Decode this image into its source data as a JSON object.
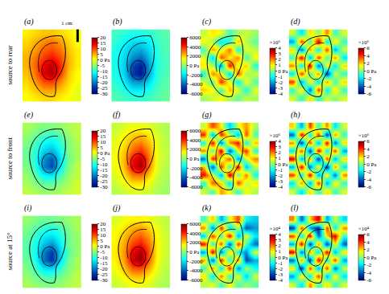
{
  "row_labels": [
    "source to rear",
    "source to front",
    "source at 15°"
  ],
  "scale_bar": "1 cm",
  "chart_data": [
    {
      "type": "heatmap",
      "label": "(a)",
      "color": "jet",
      "zlim": [
        -30,
        20
      ],
      "zticks": [
        -30,
        -25,
        -20,
        -15,
        -10,
        -5,
        {
          "value": 0,
          "label": "0 Pa"
        },
        5,
        10,
        15,
        20
      ],
      "cells": [
        [
          2,
          3,
          4,
          4,
          3,
          2,
          1
        ],
        [
          3,
          5,
          7,
          8,
          6,
          3,
          1
        ],
        [
          4,
          6,
          9,
          10,
          8,
          4,
          2
        ],
        [
          5,
          8,
          11,
          13,
          10,
          5,
          2
        ],
        [
          5,
          9,
          14,
          17,
          12,
          5,
          2
        ],
        [
          4,
          8,
          15,
          18,
          11,
          4,
          1
        ],
        [
          3,
          6,
          10,
          11,
          7,
          3,
          1
        ],
        [
          2,
          4,
          6,
          6,
          4,
          2,
          0
        ],
        [
          1,
          2,
          3,
          3,
          2,
          1,
          0
        ]
      ]
    },
    {
      "type": "heatmap",
      "label": "(b)",
      "color": "jet",
      "zlim": [
        -6000,
        6000
      ],
      "zticks": [
        -6000,
        -4000,
        -2000,
        {
          "value": 0,
          "label": "0 Pa"
        },
        2000,
        4000,
        6000
      ],
      "cells": [
        [
          -800,
          -1000,
          -1200,
          -1200,
          -1000,
          -700,
          -500
        ],
        [
          -1000,
          -1500,
          -2000,
          -2000,
          -1600,
          -900,
          -600
        ],
        [
          -1200,
          -1800,
          -2500,
          -2800,
          -2000,
          -1000,
          -600
        ],
        [
          -1300,
          -2000,
          -3200,
          -3800,
          -2500,
          -1100,
          -700
        ],
        [
          -1300,
          -2200,
          -4200,
          -5200,
          -3000,
          -1100,
          -700
        ],
        [
          -1200,
          -2100,
          -4500,
          -5500,
          -2800,
          -1000,
          -600
        ],
        [
          -1000,
          -1700,
          -3000,
          -3200,
          -2000,
          -900,
          -500
        ],
        [
          -800,
          -1200,
          -1800,
          -1800,
          -1200,
          -700,
          -400
        ],
        [
          -600,
          -800,
          -1000,
          -1000,
          -800,
          -500,
          -300
        ]
      ]
    },
    {
      "type": "heatmap",
      "label": "(c)",
      "color": "jet",
      "zlim": [
        -4,
        4
      ],
      "colorbar_title": "×10⁶",
      "zticks": [
        -4,
        -3,
        -2,
        -1,
        {
          "value": 0,
          "label": "0 Pa"
        },
        1,
        2,
        3,
        4
      ],
      "cells": [
        [
          0.5,
          1.2,
          0.8,
          -0.5,
          0.3,
          0.6,
          0.2
        ],
        [
          1.0,
          0.3,
          -1.2,
          -0.8,
          1.5,
          0.4,
          -0.3
        ],
        [
          -0.5,
          1.8,
          0.5,
          2.2,
          -1.0,
          0.8,
          0.5
        ],
        [
          0.8,
          -1.5,
          2.5,
          1.0,
          2.0,
          -0.6,
          1.0
        ],
        [
          1.2,
          0.4,
          -2.0,
          3.0,
          0.5,
          1.5,
          -0.8
        ],
        [
          -0.8,
          2.0,
          1.0,
          -1.5,
          2.5,
          0.2,
          0.6
        ],
        [
          0.6,
          -0.4,
          2.8,
          0.8,
          -1.2,
          1.0,
          -0.4
        ],
        [
          1.4,
          0.9,
          -0.6,
          1.6,
          0.7,
          -0.9,
          0.8
        ],
        [
          0.2,
          0.6,
          1.0,
          0.3,
          -0.2,
          0.5,
          0.3
        ]
      ]
    },
    {
      "type": "heatmap",
      "label": "(d)",
      "color": "jet",
      "zlim": [
        -6,
        6
      ],
      "colorbar_title": "×10⁶",
      "zticks": [
        -6,
        -4,
        -2,
        {
          "value": 0,
          "label": "0 Pa"
        },
        2,
        4,
        6
      ],
      "cells": [
        [
          1,
          -2,
          2,
          0,
          3,
          -1,
          1
        ],
        [
          -3,
          4,
          -1,
          5,
          -2,
          2,
          -1
        ],
        [
          2,
          -4,
          3,
          -2,
          4,
          -3,
          1
        ],
        [
          -1,
          5,
          -3,
          4,
          -1,
          3,
          -2
        ],
        [
          3,
          -2,
          5,
          -4,
          2,
          -2,
          2
        ],
        [
          -2,
          4,
          -1,
          3,
          -5,
          1,
          -1
        ],
        [
          4,
          -3,
          2,
          -2,
          3,
          -1,
          2
        ],
        [
          -1,
          2,
          -4,
          4,
          -2,
          2,
          -1
        ],
        [
          1,
          -1,
          2,
          -1,
          1,
          0,
          1
        ]
      ]
    },
    {
      "type": "heatmap",
      "label": "(e)",
      "color": "jet",
      "zlim": [
        -30,
        20
      ],
      "zticks": [
        -30,
        -25,
        -20,
        -15,
        -10,
        -5,
        {
          "value": 0,
          "label": "0 Pa"
        },
        5,
        10,
        15,
        20
      ],
      "cells": [
        [
          -3,
          -4,
          -5,
          -5,
          -4,
          -3,
          -2
        ],
        [
          -4,
          -6,
          -8,
          -9,
          -7,
          -4,
          -2
        ],
        [
          -5,
          -8,
          -11,
          -12,
          -9,
          -5,
          -3
        ],
        [
          -6,
          -9,
          -14,
          -16,
          -11,
          -5,
          -3
        ],
        [
          -6,
          -10,
          -18,
          -22,
          -13,
          -6,
          -3
        ],
        [
          -5,
          -9,
          -19,
          -23,
          -12,
          -5,
          -2
        ],
        [
          -4,
          -7,
          -12,
          -13,
          -8,
          -4,
          -2
        ],
        [
          -3,
          -5,
          -7,
          -7,
          -5,
          -3,
          -1
        ],
        [
          -2,
          -3,
          -4,
          -4,
          -3,
          -2,
          -1
        ]
      ]
    },
    {
      "type": "heatmap",
      "label": "(f)",
      "color": "jet",
      "zlim": [
        -6000,
        6000
      ],
      "zticks": [
        -6000,
        -4000,
        -2000,
        {
          "value": 0,
          "label": "0 Pa"
        },
        2000,
        4000,
        6000
      ],
      "cells": [
        [
          800,
          1000,
          1300,
          1300,
          1100,
          800,
          500
        ],
        [
          1000,
          1500,
          2000,
          2200,
          1700,
          1000,
          600
        ],
        [
          1200,
          1800,
          2600,
          3000,
          2200,
          1100,
          700
        ],
        [
          1300,
          2100,
          3300,
          4000,
          2700,
          1200,
          700
        ],
        [
          1400,
          2300,
          4300,
          5300,
          3100,
          1200,
          700
        ],
        [
          1300,
          2200,
          4600,
          5600,
          2900,
          1100,
          600
        ],
        [
          1100,
          1800,
          3100,
          3300,
          2100,
          900,
          500
        ],
        [
          900,
          1300,
          1900,
          1900,
          1300,
          700,
          400
        ],
        [
          600,
          900,
          1100,
          1100,
          900,
          500,
          300
        ]
      ]
    },
    {
      "type": "heatmap",
      "label": "(g)",
      "color": "jet",
      "zlim": [
        -4,
        4
      ],
      "colorbar_title": "×10⁶",
      "zticks": [
        -4,
        -3,
        -2,
        -1,
        {
          "value": 0,
          "label": "0 Pa"
        },
        1,
        2,
        3,
        4
      ],
      "cells": [
        [
          0.5,
          2.5,
          1.0,
          -1.5,
          0.8,
          1.8,
          0.3
        ],
        [
          2.8,
          -2.0,
          3.0,
          0.5,
          -1.8,
          2.5,
          -0.5
        ],
        [
          -1.0,
          3.2,
          -2.5,
          2.0,
          3.0,
          -1.2,
          1.5
        ],
        [
          2.0,
          -0.5,
          3.5,
          -3.0,
          1.0,
          2.8,
          -0.8
        ],
        [
          -2.5,
          3.0,
          0.5,
          2.5,
          -2.2,
          0.6,
          2.0
        ],
        [
          1.5,
          -3.0,
          2.8,
          -0.8,
          3.2,
          -1.8,
          0.5
        ],
        [
          3.0,
          0.8,
          -2.0,
          3.5,
          -0.5,
          2.2,
          -1.0
        ],
        [
          -0.8,
          2.4,
          1.2,
          -1.5,
          2.6,
          0.4,
          1.2
        ],
        [
          0.6,
          -0.4,
          1.8,
          0.8,
          -0.6,
          1.0,
          0.3
        ]
      ]
    },
    {
      "type": "heatmap",
      "label": "(h)",
      "color": "jet",
      "zlim": [
        -6,
        6
      ],
      "colorbar_title": "×10⁶",
      "zticks": [
        -6,
        -4,
        -2,
        {
          "value": 0,
          "label": "0 Pa"
        },
        2,
        4,
        6
      ],
      "cells": [
        [
          2,
          -3,
          4,
          -1,
          3,
          -2,
          1
        ],
        [
          -4,
          5,
          -2,
          4,
          -5,
          3,
          -1
        ],
        [
          3,
          -5,
          4,
          -3,
          5,
          -4,
          2
        ],
        [
          -2,
          4,
          -5,
          5,
          -2,
          4,
          -3
        ],
        [
          5,
          -3,
          3,
          -5,
          4,
          -3,
          2
        ],
        [
          -3,
          5,
          -4,
          2,
          -5,
          3,
          -2
        ],
        [
          4,
          -2,
          5,
          -3,
          2,
          -4,
          3
        ],
        [
          -2,
          3,
          -3,
          4,
          -3,
          2,
          -1
        ],
        [
          1,
          -2,
          2,
          -1,
          2,
          -1,
          1
        ]
      ]
    },
    {
      "type": "heatmap",
      "label": "(i)",
      "color": "jet",
      "zlim": [
        -30,
        20
      ],
      "zticks": [
        -30,
        -25,
        -20,
        -15,
        -10,
        -5,
        {
          "value": 0,
          "label": "0 Pa"
        },
        5,
        10,
        15,
        20
      ],
      "cells": [
        [
          -4,
          -5,
          -6,
          -6,
          -5,
          -4,
          -3
        ],
        [
          -5,
          -7,
          -9,
          -10,
          -8,
          -5,
          -3
        ],
        [
          -6,
          -9,
          -12,
          -13,
          -10,
          -6,
          -4
        ],
        [
          -7,
          -10,
          -15,
          -18,
          -12,
          -6,
          -4
        ],
        [
          -7,
          -11,
          -19,
          -24,
          -14,
          -7,
          -4
        ],
        [
          -6,
          -10,
          -20,
          -25,
          -13,
          -6,
          -3
        ],
        [
          -5,
          -8,
          -13,
          -14,
          -9,
          -5,
          -3
        ],
        [
          -4,
          -6,
          -8,
          -8,
          -6,
          -4,
          -2
        ],
        [
          -3,
          -4,
          -5,
          -5,
          -4,
          -3,
          -2
        ]
      ]
    },
    {
      "type": "heatmap",
      "label": "(j)",
      "color": "jet",
      "zlim": [
        -6000,
        6000
      ],
      "zticks": [
        -6000,
        -4000,
        -2000,
        {
          "value": 0,
          "label": "0 Pa"
        },
        2000,
        4000,
        6000
      ],
      "cells": [
        [
          1000,
          1300,
          1600,
          1600,
          1400,
          1000,
          700
        ],
        [
          1300,
          1800,
          2400,
          2600,
          2000,
          1200,
          800
        ],
        [
          1500,
          2200,
          3000,
          3400,
          2600,
          1400,
          900
        ],
        [
          1600,
          2500,
          3700,
          4300,
          3100,
          1500,
          900
        ],
        [
          1700,
          2700,
          4600,
          5500,
          3500,
          1500,
          900
        ],
        [
          1600,
          2600,
          4900,
          5800,
          3300,
          1400,
          800
        ],
        [
          1400,
          2200,
          3500,
          3700,
          2500,
          1200,
          700
        ],
        [
          1100,
          1600,
          2300,
          2300,
          1600,
          900,
          600
        ],
        [
          800,
          1100,
          1400,
          1400,
          1100,
          700,
          400
        ]
      ]
    },
    {
      "type": "heatmap",
      "label": "(k)",
      "color": "jet",
      "zlim": [
        -4,
        4
      ],
      "colorbar_title": "×10⁴",
      "zticks": [
        -4,
        -3,
        -2,
        -1,
        {
          "value": 0,
          "label": "0 Pa"
        },
        1,
        2,
        3,
        4
      ],
      "cells": [
        [
          -0.5,
          1.5,
          -2.0,
          0.8,
          2.5,
          -1.0,
          -1.5
        ],
        [
          2.0,
          -2.5,
          3.0,
          -1.5,
          0.5,
          -2.8,
          -2.0
        ],
        [
          -1.5,
          2.8,
          -0.8,
          3.2,
          -2.0,
          1.0,
          -1.2
        ],
        [
          3.0,
          -1.0,
          2.5,
          -3.0,
          2.8,
          -0.5,
          -2.5
        ],
        [
          -2.0,
          3.5,
          -2.5,
          1.5,
          -1.0,
          -2.2,
          0.8
        ],
        [
          1.8,
          -2.8,
          3.0,
          -1.0,
          2.2,
          -3.0,
          -1.8
        ],
        [
          -0.6,
          2.0,
          -1.5,
          2.8,
          -2.4,
          0.5,
          -1.0
        ],
        [
          1.2,
          -1.4,
          2.2,
          -0.8,
          1.0,
          -1.6,
          0.6
        ],
        [
          0.4,
          0.8,
          -0.6,
          1.0,
          -0.4,
          0.2,
          -0.3
        ]
      ]
    },
    {
      "type": "heatmap",
      "label": "(l)",
      "color": "jet",
      "zlim": [
        -6,
        6
      ],
      "colorbar_title": "×10⁴",
      "zticks": [
        -6,
        -4,
        -2,
        {
          "value": 0,
          "label": "0 Pa"
        },
        2,
        4,
        6
      ],
      "cells": [
        [
          3,
          -4,
          2,
          5,
          -3,
          1,
          -2
        ],
        [
          -5,
          4,
          -3,
          -5,
          4,
          -2,
          3
        ],
        [
          4,
          -2,
          5,
          -4,
          2,
          5,
          -1
        ],
        [
          -3,
          5,
          -5,
          3,
          -5,
          2,
          -4
        ],
        [
          5,
          -4,
          3,
          -2,
          5,
          -3,
          2
        ],
        [
          -4,
          3,
          -5,
          5,
          -2,
          4,
          -3
        ],
        [
          2,
          -5,
          4,
          -3,
          4,
          -4,
          1
        ],
        [
          -3,
          2,
          -2,
          4,
          -3,
          2,
          -2
        ],
        [
          1,
          -2,
          3,
          -1,
          2,
          -1,
          1
        ]
      ]
    }
  ]
}
